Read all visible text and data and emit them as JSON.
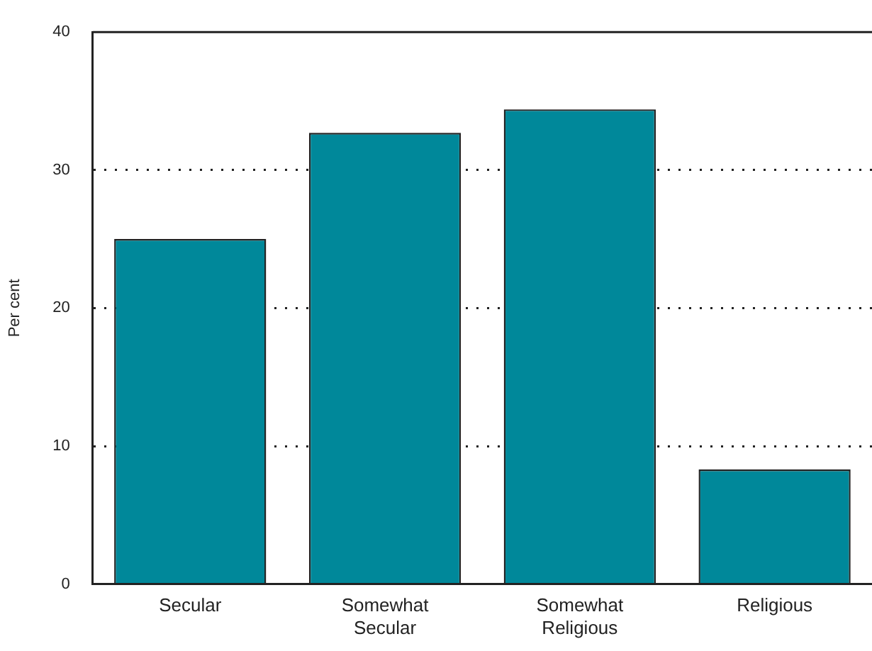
{
  "chart_data": {
    "type": "bar",
    "ylabel": "Per cent",
    "categories": [
      "Secular",
      "Somewhat Secular",
      "Somewhat Religious",
      "Religious"
    ],
    "values": [
      25,
      32.7,
      34.4,
      8.3
    ],
    "color": "#00889a",
    "ylim": [
      0,
      40
    ],
    "yticks": [
      0,
      10,
      20,
      30,
      40
    ],
    "grid": "y",
    "legend": false
  }
}
